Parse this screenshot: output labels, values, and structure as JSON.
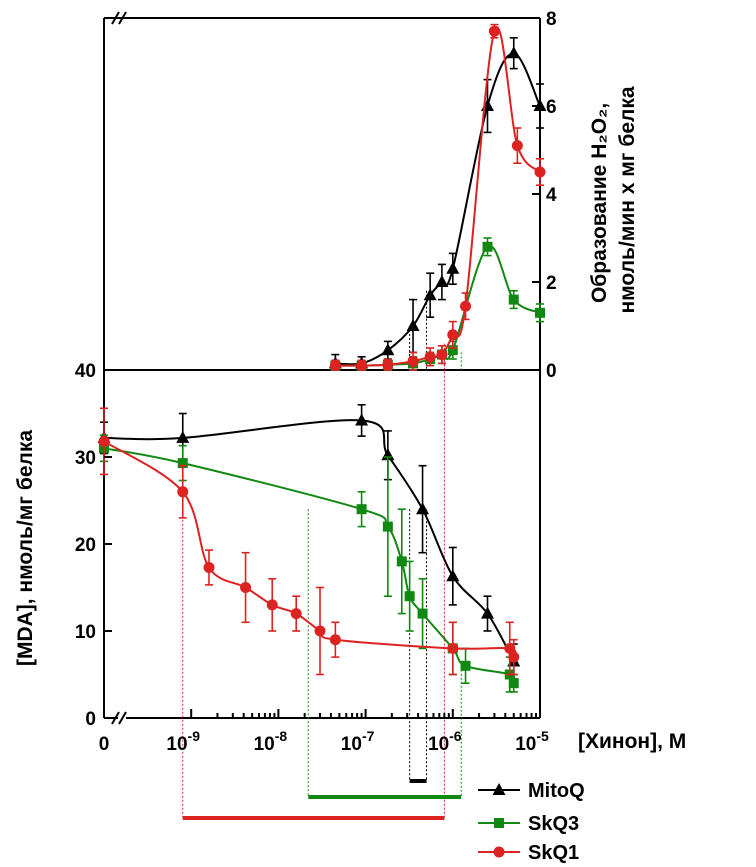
{
  "chart_data": [
    {
      "id": "top",
      "type": "line",
      "ylabel_line1": "Образование  H₂O₂,",
      "ylabel_line2": "нмоль/мин  х  мг  белка",
      "ylim": [
        0,
        8
      ],
      "yticks": [
        "0",
        "2",
        "4",
        "6",
        "8"
      ],
      "xscale": "log",
      "xlim": [
        1e-10,
        1e-05
      ],
      "series": [
        {
          "name": "MitoQ",
          "color": "#000000",
          "marker": "triangle",
          "x": [
            4.5e-08,
            9e-08,
            1.8e-07,
            3.5e-07,
            5.5e-07,
            7.5e-07,
            1e-06,
            2.5e-06,
            5e-06,
            1e-05
          ],
          "y": [
            0.15,
            0.15,
            0.45,
            1.0,
            1.7,
            2.0,
            2.3,
            6.0,
            7.2,
            6.0
          ],
          "err": [
            0.2,
            0.15,
            0.2,
            0.6,
            0.5,
            0.4,
            0.35,
            0.6,
            0.35,
            0.5
          ]
        },
        {
          "name": "SkQ3",
          "color": "#118811",
          "marker": "square",
          "x": [
            4.5e-08,
            9e-08,
            1.8e-07,
            3.5e-07,
            5.5e-07,
            7.5e-07,
            1e-06,
            2.5e-06,
            5e-06,
            1e-05
          ],
          "y": [
            0.1,
            0.1,
            0.12,
            0.15,
            0.25,
            0.35,
            0.45,
            2.8,
            1.6,
            1.3
          ],
          "err": [
            0.12,
            0.12,
            0.12,
            0.15,
            0.15,
            0.2,
            0.2,
            0.2,
            0.2,
            0.2
          ]
        },
        {
          "name": "SkQ1",
          "color": "#dd2222",
          "marker": "circle",
          "x": [
            4.5e-08,
            9e-08,
            1.8e-07,
            3.5e-07,
            5.5e-07,
            7.5e-07,
            1e-06,
            1.4e-06,
            3e-06,
            5.5e-06,
            1e-05
          ],
          "y": [
            0.1,
            0.1,
            0.12,
            0.2,
            0.3,
            0.35,
            0.8,
            1.45,
            7.7,
            5.1,
            4.5
          ],
          "err": [
            0.12,
            0.12,
            0.12,
            0.2,
            0.2,
            0.2,
            0.3,
            0.3,
            0.15,
            0.4,
            0.3
          ]
        }
      ]
    },
    {
      "id": "bottom",
      "type": "line",
      "ylabel": "[MDA],  нмоль/мг  белка",
      "xlabel": "[Хинон],  М",
      "ylim": [
        0,
        40
      ],
      "yticks": [
        "0",
        "10",
        "20",
        "30",
        "40"
      ],
      "xscale": "log",
      "xlim": [
        1e-10,
        1e-05
      ],
      "xtick_zero": "0",
      "xticks": [
        {
          "v": 1e-09,
          "mant": "10",
          "exp": "-9"
        },
        {
          "v": 1e-08,
          "mant": "10",
          "exp": "-8"
        },
        {
          "v": 1e-07,
          "mant": "10",
          "exp": "-7"
        },
        {
          "v": 1e-06,
          "mant": "10",
          "exp": "-6"
        },
        {
          "v": 1e-05,
          "mant": "10",
          "exp": "-5"
        }
      ],
      "series": [
        {
          "name": "MitoQ",
          "color": "#000000",
          "marker": "triangle",
          "x": [
            8e-10,
            9e-08,
            1.8e-07,
            4.5e-07,
            1e-06,
            2.5e-06,
            5e-06
          ],
          "y": [
            32.2,
            34.2,
            30.2,
            24.0,
            16.3,
            12.0,
            6.5
          ],
          "err": [
            2.8,
            1.8,
            2.8,
            5.0,
            3.3,
            2.0,
            2.0
          ],
          "y0": 32.2,
          "err0": 1.8
        },
        {
          "name": "SkQ3",
          "color": "#118811",
          "marker": "square",
          "x": [
            8e-10,
            9e-08,
            1.8e-07,
            2.6e-07,
            3.2e-07,
            4.5e-07,
            1e-06,
            1.4e-06,
            4.5e-06,
            5e-06
          ],
          "y": [
            29.3,
            24.0,
            22.0,
            18.0,
            14.0,
            12.0,
            8.0,
            6.0,
            5.0,
            4.0
          ],
          "err": [
            2.0,
            2.0,
            8.0,
            6.0,
            4.0,
            4.0,
            3.0,
            2.0,
            2.0,
            1.0
          ],
          "y0": 31.0,
          "err0": 1.5
        },
        {
          "name": "SkQ1",
          "color": "#dd2222",
          "marker": "circle",
          "x": [
            8e-10,
            1.6e-09,
            4.2e-09,
            8.5e-09,
            1.6e-08,
            3e-08,
            4.5e-08,
            1e-06,
            4.5e-06,
            5e-06
          ],
          "y": [
            26.0,
            17.3,
            15.0,
            13.0,
            12.0,
            10.0,
            9.0,
            8.0,
            8.0,
            7.0
          ],
          "err": [
            3.0,
            2.0,
            4.0,
            3.0,
            2.0,
            5.0,
            2.0,
            3.0,
            3.0,
            2.0
          ],
          "y0": 31.8,
          "err0": 3.8
        }
      ],
      "ranges": [
        {
          "series": "MitoQ",
          "color": "#000000",
          "x": [
            3.2e-07,
            5e-07
          ]
        },
        {
          "series": "SkQ3",
          "color": "#118811",
          "x": [
            2.2e-08,
            1.25e-06
          ]
        },
        {
          "series": "SkQ1",
          "color": "#dd2222",
          "x": [
            8e-10,
            8e-07
          ]
        }
      ]
    }
  ],
  "legend": {
    "placement": "bottom-right",
    "items": [
      {
        "label": "MitoQ",
        "color": "#000000",
        "marker": "triangle"
      },
      {
        "label": "SkQ3",
        "color": "#118811",
        "marker": "square"
      },
      {
        "label": "SkQ1",
        "color": "#dd2222",
        "marker": "circle"
      }
    ]
  }
}
